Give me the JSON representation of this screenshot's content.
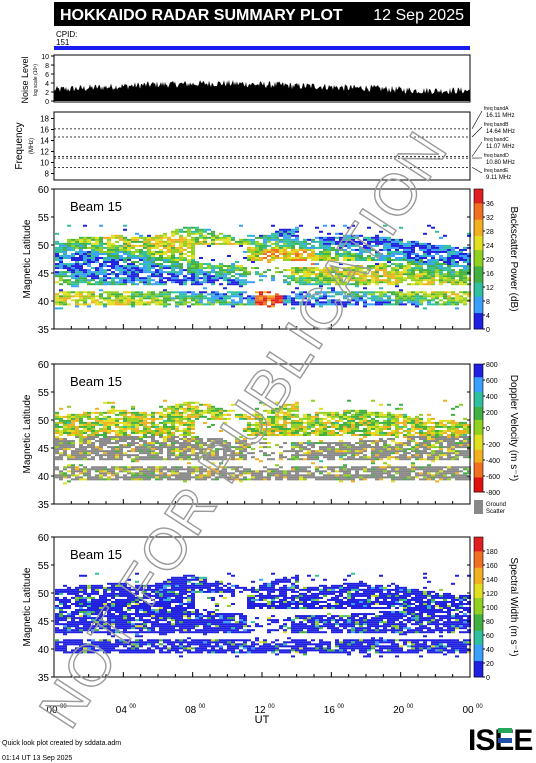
{
  "header": {
    "title": "HOKKAIDO RADAR SUMMARY PLOT",
    "date": "12 Sep 2025",
    "bg_color": "#000000",
    "fg_color": "#ffffff"
  },
  "cpid": {
    "label": "CPID:",
    "value": "151",
    "bar_color": "#1c1cf0"
  },
  "footer": {
    "credit": "Quick look plot created by sddata.adm",
    "timestamp": "01:14 UT 13 Sep 2025",
    "logo": "ISEE",
    "logo_colors": [
      "#000000",
      "#26a65b",
      "#1f4fa8"
    ]
  },
  "watermark": {
    "text": "NOT FOR PUBLICATION",
    "color": "#888888"
  },
  "x_axis": {
    "label": "UT",
    "ticks": [
      {
        "h": "00",
        "m": "00"
      },
      {
        "h": "04",
        "m": "00"
      },
      {
        "h": "08",
        "m": "00"
      },
      {
        "h": "12",
        "m": "00"
      },
      {
        "h": "16",
        "m": "00"
      },
      {
        "h": "20",
        "m": "00"
      },
      {
        "h": "00",
        "m": "00"
      }
    ]
  },
  "chart_data": [
    {
      "type": "area",
      "name": "noise",
      "ylabel": "Noise Level",
      "ylabel_unit": "log scale (10⁵)",
      "ylim": [
        0,
        10
      ],
      "yticks": [
        "0",
        "2",
        "4",
        "6",
        "8",
        "10"
      ],
      "x": [
        0,
        1,
        2,
        3,
        4,
        5,
        6,
        7,
        8,
        9,
        10,
        11,
        12,
        13,
        14,
        15,
        16,
        17,
        18,
        19,
        20,
        21,
        22,
        23,
        24
      ],
      "values": [
        2.2,
        2.4,
        2.6,
        2.8,
        3.0,
        3.2,
        3.4,
        3.4,
        3.5,
        3.6,
        3.6,
        3.5,
        3.3,
        3.3,
        3.0,
        3.0,
        2.8,
        2.6,
        2.6,
        2.4,
        2.2,
        2.0,
        2.0,
        2.0,
        2.0
      ]
    },
    {
      "type": "line",
      "name": "frequency",
      "ylabel": "Frequency",
      "ylabel_unit": "(MHz)",
      "ylim": [
        7,
        19
      ],
      "yticks": [
        "8",
        "10",
        "12",
        "14",
        "16",
        "18"
      ],
      "bands": [
        {
          "label": "freq bandA",
          "value": "16.11 MHz",
          "mhz": 16.11
        },
        {
          "label": "freq bandB",
          "value": "14.64 MHz",
          "mhz": 14.64
        },
        {
          "label": "freq bandC",
          "value": "11.07 MHz",
          "mhz": 11.07
        },
        {
          "label": "freq bandD",
          "value": "10.80 MHz",
          "mhz": 10.8
        },
        {
          "label": "freq bandE",
          "value": "9.11 MHz",
          "mhz": 9.11
        }
      ]
    },
    {
      "type": "heatmap",
      "name": "power",
      "beam_label": "Beam 15",
      "ylabel": "Magnetic Latitude",
      "ylim": [
        35,
        60
      ],
      "yticks": [
        "35",
        "40",
        "45",
        "50",
        "55",
        "60"
      ],
      "colorbar": {
        "label": "Backscatter Power (dB)",
        "range": [
          0,
          40
        ],
        "ticks": [
          "0",
          "4",
          "8",
          "12",
          "16",
          "20",
          "24",
          "28",
          "32",
          "36"
        ],
        "colors": [
          "#2020e0",
          "#3aa0ff",
          "#30c0a0",
          "#40b040",
          "#90d020",
          "#e0e020",
          "#f0b020",
          "#f07020",
          "#e02020"
        ]
      }
    },
    {
      "type": "heatmap",
      "name": "velocity",
      "beam_label": "Beam 15",
      "ylabel": "Magnetic Latitude",
      "ylim": [
        35,
        60
      ],
      "yticks": [
        "35",
        "40",
        "45",
        "50",
        "55",
        "60"
      ],
      "colorbar": {
        "label": "Doppler Velocity (m s⁻¹)",
        "range": [
          -800,
          800
        ],
        "ticks": [
          "-800",
          "-600",
          "-400",
          "-200",
          "0",
          "200",
          "400",
          "600",
          "800"
        ],
        "colors": [
          "#e01010",
          "#f07020",
          "#f0b020",
          "#e0e020",
          "#90d020",
          "#40b040",
          "#30c0a0",
          "#3aa0ff",
          "#2020e0"
        ],
        "ground_label": [
          "Ground",
          "Scatter"
        ],
        "ground_color": "#888888"
      }
    },
    {
      "type": "heatmap",
      "name": "width",
      "beam_label": "Beam 15",
      "ylabel": "Magnetic Latitude",
      "ylim": [
        35,
        60
      ],
      "yticks": [
        "35",
        "40",
        "45",
        "50",
        "55",
        "60"
      ],
      "colorbar": {
        "label": "Spectral Width (m s⁻¹)",
        "range": [
          0,
          200
        ],
        "ticks": [
          "0",
          "20",
          "40",
          "60",
          "80",
          "100",
          "120",
          "140",
          "160",
          "180"
        ],
        "colors": [
          "#2020e0",
          "#3aa0ff",
          "#30c0a0",
          "#40b040",
          "#90d020",
          "#e0e020",
          "#f0b020",
          "#f07020",
          "#e02020"
        ]
      }
    }
  ]
}
